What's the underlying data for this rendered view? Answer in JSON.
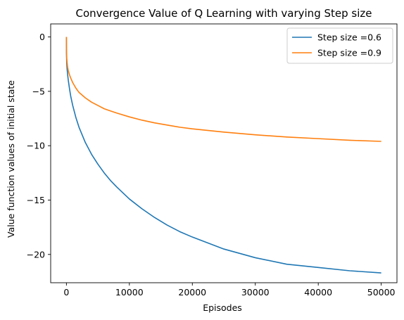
{
  "chart_data": {
    "type": "line",
    "title": "Convergence Value of Q Learning with varying Step size",
    "xlabel": "Episodes",
    "ylabel": "Value function values of initial state",
    "xlim": [
      -2500,
      52500
    ],
    "ylim": [
      -22.6,
      1.2
    ],
    "xticks": [
      {
        "value": 0,
        "label": "0"
      },
      {
        "value": 10000,
        "label": "10000"
      },
      {
        "value": 20000,
        "label": "20000"
      },
      {
        "value": 30000,
        "label": "30000"
      },
      {
        "value": 40000,
        "label": "40000"
      },
      {
        "value": 50000,
        "label": "50000"
      }
    ],
    "yticks": [
      {
        "value": 0,
        "label": "0"
      },
      {
        "value": -5,
        "label": "−5"
      },
      {
        "value": -10,
        "label": "−10"
      },
      {
        "value": -15,
        "label": "−15"
      },
      {
        "value": -20,
        "label": "−20"
      }
    ],
    "grid": false,
    "legend_position": "top-right",
    "series": [
      {
        "name": "Step size =0.6",
        "color": "#1f77b4",
        "x": [
          0,
          10,
          50,
          100,
          200,
          300,
          500,
          700,
          1000,
          1500,
          2000,
          3000,
          4000,
          5000,
          6000,
          7000,
          8000,
          10000,
          12000,
          14000,
          16000,
          18000,
          20000,
          25000,
          30000,
          35000,
          40000,
          45000,
          50000
        ],
        "y": [
          0,
          -1.5,
          -2.4,
          -2.9,
          -3.5,
          -4.0,
          -4.8,
          -5.5,
          -6.3,
          -7.4,
          -8.3,
          -9.7,
          -10.8,
          -11.7,
          -12.5,
          -13.2,
          -13.8,
          -14.9,
          -15.8,
          -16.6,
          -17.3,
          -17.9,
          -18.4,
          -19.5,
          -20.3,
          -20.9,
          -21.2,
          -21.5,
          -21.7
        ]
      },
      {
        "name": "Step size =0.9",
        "color": "#ff7f0e",
        "x": [
          0,
          10,
          50,
          100,
          200,
          300,
          500,
          700,
          1000,
          1500,
          2000,
          3000,
          4000,
          5000,
          6000,
          7000,
          8000,
          10000,
          12000,
          14000,
          16000,
          18000,
          20000,
          25000,
          30000,
          35000,
          40000,
          45000,
          50000
        ],
        "y": [
          0,
          -1.2,
          -1.9,
          -2.3,
          -2.8,
          -3.1,
          -3.5,
          -3.8,
          -4.2,
          -4.7,
          -5.1,
          -5.6,
          -6.0,
          -6.3,
          -6.6,
          -6.8,
          -7.0,
          -7.35,
          -7.65,
          -7.9,
          -8.1,
          -8.3,
          -8.45,
          -8.75,
          -9.0,
          -9.2,
          -9.35,
          -9.5,
          -9.6
        ]
      }
    ]
  }
}
